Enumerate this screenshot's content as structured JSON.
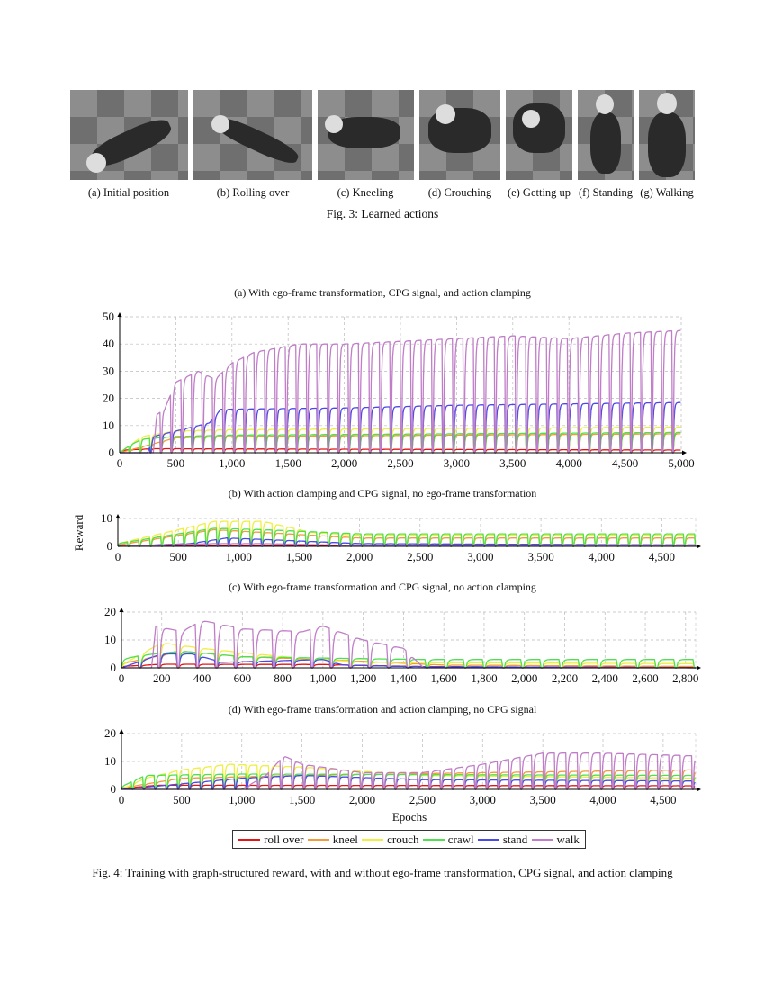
{
  "fig3": {
    "caption": "Fig. 3: Learned actions",
    "panels": [
      {
        "label": "(a) Initial position"
      },
      {
        "label": "(b) Rolling over"
      },
      {
        "label": "(c) Kneeling"
      },
      {
        "label": "(d) Crouching"
      },
      {
        "label": "(e) Getting up"
      },
      {
        "label": "(f) Standing"
      },
      {
        "label": "(g) Walking"
      }
    ]
  },
  "fig4": {
    "caption": "Fig. 4: Training with graph-structured reward, with and without ego-frame transformation, CPG signal, and action clamping",
    "ylabel": "Reward",
    "xlabel": "Epochs",
    "legend": [
      {
        "name": "roll over",
        "color": "#e41414"
      },
      {
        "name": "kneel",
        "color": "#f39a3a"
      },
      {
        "name": "crouch",
        "color": "#f0ee40"
      },
      {
        "name": "crawl",
        "color": "#4fe04f"
      },
      {
        "name": "stand",
        "color": "#4a4ae6"
      },
      {
        "name": "walk",
        "color": "#c07ec8"
      }
    ]
  },
  "chart_data": [
    {
      "type": "line",
      "title": "(a) With ego-frame transformation, CPG signal, and action clamping",
      "xlim": [
        0,
        5000
      ],
      "ylim": [
        0,
        50
      ],
      "xticks": [
        0,
        500,
        1000,
        1500,
        2000,
        2500,
        3000,
        3500,
        4000,
        4500,
        5000
      ],
      "xtick_labels": [
        "0",
        "500",
        "1,000",
        "1,500",
        "2,000",
        "2,500",
        "3,000",
        "3,500",
        "4,000",
        "4,500",
        "5,000"
      ],
      "yticks": [
        0,
        10,
        20,
        30,
        40,
        50
      ],
      "ytick_labels": [
        "0",
        "10",
        "20",
        "30",
        "40",
        "50"
      ],
      "grid": true,
      "cycle_period": 93,
      "series": [
        {
          "name": "roll over",
          "points": [
            [
              0,
              0
            ],
            [
              50,
              1
            ],
            [
              300,
              1.5
            ],
            [
              5000,
              1
            ]
          ]
        },
        {
          "name": "kneel",
          "points": [
            [
              0,
              0
            ],
            [
              500,
              5.5
            ],
            [
              1000,
              6
            ],
            [
              5000,
              7
            ]
          ]
        },
        {
          "name": "crouch",
          "points": [
            [
              0,
              0
            ],
            [
              200,
              6
            ],
            [
              500,
              8
            ],
            [
              1000,
              8.5
            ],
            [
              5000,
              9.5
            ]
          ]
        },
        {
          "name": "crawl",
          "points": [
            [
              0,
              0
            ],
            [
              100,
              3
            ],
            [
              200,
              5
            ],
            [
              500,
              6
            ],
            [
              1000,
              6.5
            ],
            [
              5000,
              7.5
            ]
          ]
        },
        {
          "name": "stand",
          "points": [
            [
              0,
              0
            ],
            [
              250,
              0
            ],
            [
              300,
              6
            ],
            [
              500,
              8
            ],
            [
              800,
              11
            ],
            [
              900,
              16
            ],
            [
              2000,
              16.5
            ],
            [
              3000,
              17.5
            ],
            [
              5000,
              18.5
            ]
          ]
        },
        {
          "name": "walk",
          "points": [
            [
              0,
              0
            ],
            [
              300,
              0
            ],
            [
              330,
              14
            ],
            [
              400,
              16
            ],
            [
              500,
              26
            ],
            [
              700,
              30
            ],
            [
              850,
              27
            ],
            [
              1000,
              33
            ],
            [
              1200,
              37
            ],
            [
              1600,
              40
            ],
            [
              2000,
              40
            ],
            [
              2500,
              41
            ],
            [
              3500,
              43
            ],
            [
              4000,
              42
            ],
            [
              4500,
              44
            ],
            [
              5000,
              45
            ]
          ]
        }
      ]
    },
    {
      "type": "line",
      "title": "(b) With action clamping and CPG signal, no ego-frame transformation",
      "xlim": [
        0,
        4780
      ],
      "ylim": [
        0,
        10
      ],
      "xticks": [
        0,
        500,
        1000,
        1500,
        2000,
        2500,
        3000,
        3500,
        4000,
        4500
      ],
      "xtick_labels": [
        "0",
        "500",
        "1,000",
        "1,500",
        "2,000",
        "2,500",
        "3,000",
        "3,500",
        "4,000",
        "4,500"
      ],
      "yticks": [
        0,
        10
      ],
      "ytick_labels": [
        "0",
        "10"
      ],
      "grid": true,
      "cycle_period": 92,
      "series": [
        {
          "name": "roll over",
          "points": [
            [
              0,
              0.3
            ],
            [
              4780,
              0.5
            ]
          ]
        },
        {
          "name": "kneel",
          "points": [
            [
              0,
              0.5
            ],
            [
              800,
              6
            ],
            [
              1200,
              5
            ],
            [
              2000,
              3
            ],
            [
              4780,
              3
            ]
          ]
        },
        {
          "name": "crouch",
          "points": [
            [
              0,
              1
            ],
            [
              500,
              6
            ],
            [
              800,
              9
            ],
            [
              1200,
              9
            ],
            [
              1600,
              5
            ],
            [
              2000,
              4
            ],
            [
              4780,
              4
            ]
          ]
        },
        {
          "name": "crawl",
          "points": [
            [
              0,
              1
            ],
            [
              500,
              4.5
            ],
            [
              800,
              6.5
            ],
            [
              1200,
              6
            ],
            [
              2000,
              4.5
            ],
            [
              4780,
              4.5
            ]
          ]
        },
        {
          "name": "stand",
          "points": [
            [
              0,
              0
            ],
            [
              600,
              1
            ],
            [
              900,
              3
            ],
            [
              1200,
              2.5
            ],
            [
              2000,
              1
            ],
            [
              4780,
              0.5
            ]
          ]
        },
        {
          "name": "walk",
          "points": [
            [
              0,
              0
            ],
            [
              800,
              1
            ],
            [
              1200,
              1
            ],
            [
              2000,
              0.3
            ],
            [
              4780,
              0.2
            ]
          ]
        }
      ]
    },
    {
      "type": "line",
      "title": "(c) With ego-frame transformation and CPG signal, no action clamping",
      "xlim": [
        0,
        2850
      ],
      "ylim": [
        0,
        20
      ],
      "xticks": [
        0,
        200,
        400,
        600,
        800,
        1000,
        1200,
        1400,
        1600,
        1800,
        2000,
        2200,
        2400,
        2600,
        2800
      ],
      "xtick_labels": [
        "0",
        "200",
        "400",
        "600",
        "800",
        "1,000",
        "1,200",
        "1,400",
        "1,600",
        "1,800",
        "2,000",
        "2,200",
        "2,400",
        "2,600",
        "2,800"
      ],
      "yticks": [
        0,
        10,
        20
      ],
      "ytick_labels": [
        "0",
        "10",
        "20"
      ],
      "grid": true,
      "cycle_period": 95,
      "series": [
        {
          "name": "roll over",
          "points": [
            [
              0,
              0.5
            ],
            [
              200,
              1.3
            ],
            [
              1000,
              1.2
            ],
            [
              1600,
              0.3
            ],
            [
              2850,
              0.3
            ]
          ]
        },
        {
          "name": "kneel",
          "points": [
            [
              0,
              1.5
            ],
            [
              300,
              6
            ],
            [
              600,
              4
            ],
            [
              1000,
              3
            ],
            [
              1600,
              1
            ],
            [
              2850,
              0.5
            ]
          ]
        },
        {
          "name": "crouch",
          "points": [
            [
              0,
              1
            ],
            [
              200,
              9
            ],
            [
              400,
              7
            ],
            [
              800,
              4
            ],
            [
              1200,
              2
            ],
            [
              2850,
              1.5
            ]
          ]
        },
        {
          "name": "crawl",
          "points": [
            [
              0,
              3
            ],
            [
              100,
              4.5
            ],
            [
              300,
              6
            ],
            [
              600,
              4
            ],
            [
              1000,
              3.5
            ],
            [
              1500,
              3
            ],
            [
              2850,
              3
            ]
          ]
        },
        {
          "name": "stand",
          "points": [
            [
              0,
              0
            ],
            [
              200,
              5
            ],
            [
              350,
              5
            ],
            [
              500,
              2
            ],
            [
              1000,
              3
            ],
            [
              1100,
              1
            ],
            [
              1400,
              0.5
            ],
            [
              2850,
              0
            ]
          ]
        },
        {
          "name": "walk",
          "points": [
            [
              0,
              0
            ],
            [
              150,
              0
            ],
            [
              170,
              15
            ],
            [
              300,
              13
            ],
            [
              400,
              17
            ],
            [
              600,
              14
            ],
            [
              900,
              13
            ],
            [
              1000,
              15
            ],
            [
              1200,
              10
            ],
            [
              1400,
              7
            ],
            [
              1500,
              0
            ],
            [
              2850,
              0
            ]
          ]
        }
      ]
    },
    {
      "type": "line",
      "title": "(d) With ego-frame transformation and action clamping, no CPG signal",
      "xlim": [
        0,
        4770
      ],
      "ylim": [
        0,
        20
      ],
      "xticks": [
        0,
        500,
        1000,
        1500,
        2000,
        2500,
        3000,
        3500,
        4000,
        4500
      ],
      "xtick_labels": [
        "0",
        "500",
        "1,000",
        "1,500",
        "2,000",
        "2,500",
        "3,000",
        "3,500",
        "4,000",
        "4,500"
      ],
      "yticks": [
        0,
        10,
        20
      ],
      "ytick_labels": [
        "0",
        "10",
        "20"
      ],
      "grid": true,
      "cycle_period": 95,
      "series": [
        {
          "name": "roll over",
          "points": [
            [
              0,
              0.3
            ],
            [
              300,
              1.5
            ],
            [
              4770,
              1.3
            ]
          ]
        },
        {
          "name": "kneel",
          "points": [
            [
              0,
              0.5
            ],
            [
              500,
              4
            ],
            [
              1500,
              5
            ],
            [
              3000,
              6
            ],
            [
              4770,
              7
            ]
          ]
        },
        {
          "name": "crouch",
          "points": [
            [
              0,
              0
            ],
            [
              200,
              4
            ],
            [
              500,
              7
            ],
            [
              900,
              9
            ],
            [
              1500,
              8
            ],
            [
              2500,
              5
            ],
            [
              4770,
              4
            ]
          ]
        },
        {
          "name": "crawl",
          "points": [
            [
              0,
              1
            ],
            [
              200,
              5
            ],
            [
              1000,
              5.5
            ],
            [
              4770,
              5
            ]
          ]
        },
        {
          "name": "stand",
          "points": [
            [
              0,
              0
            ],
            [
              500,
              2
            ],
            [
              1000,
              4
            ],
            [
              1500,
              5
            ],
            [
              2500,
              3.5
            ],
            [
              4770,
              3
            ]
          ]
        },
        {
          "name": "walk",
          "points": [
            [
              0,
              0
            ],
            [
              1000,
              0
            ],
            [
              1200,
              5
            ],
            [
              1350,
              12
            ],
            [
              1500,
              9
            ],
            [
              2000,
              6
            ],
            [
              2500,
              6
            ],
            [
              3000,
              9
            ],
            [
              3500,
              13
            ],
            [
              4000,
              13
            ],
            [
              4770,
              12
            ]
          ]
        }
      ]
    }
  ]
}
